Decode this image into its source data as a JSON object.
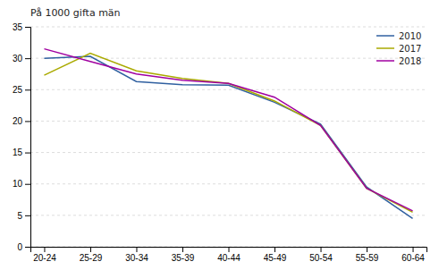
{
  "chart_data": {
    "type": "line",
    "ylabel": "På 1000 gifta män",
    "categories": [
      "20-24",
      "25-29",
      "30-34",
      "35-39",
      "40-44",
      "45-49",
      "50-54",
      "55-59",
      "60-64"
    ],
    "series": [
      {
        "name": "2010",
        "color": "#3060A0",
        "values": [
          30.0,
          30.3,
          26.3,
          25.8,
          25.7,
          23.0,
          19.5,
          9.5,
          4.5
        ]
      },
      {
        "name": "2017",
        "color": "#AAAA00",
        "values": [
          27.3,
          30.8,
          28.0,
          26.8,
          26.0,
          23.2,
          19.3,
          9.3,
          5.5
        ]
      },
      {
        "name": "2018",
        "color": "#A000A0",
        "values": [
          31.5,
          29.5,
          27.5,
          26.5,
          26.0,
          23.8,
          19.3,
          9.3,
          5.7
        ]
      }
    ],
    "ylim": [
      0,
      35
    ],
    "yticks": [
      0,
      5,
      10,
      15,
      20,
      25,
      30,
      35
    ],
    "grid": true,
    "legend": "upper-right"
  }
}
